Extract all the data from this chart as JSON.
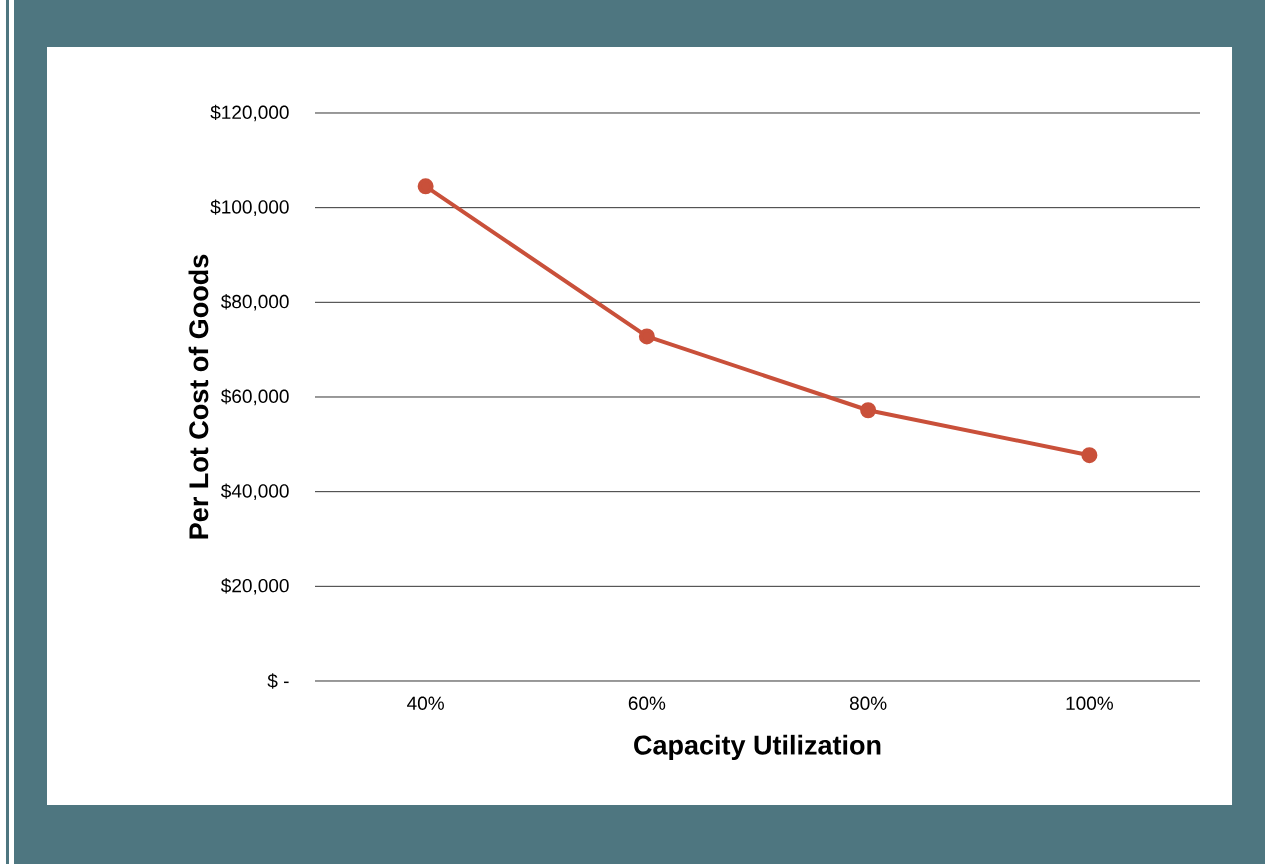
{
  "chart_data": {
    "type": "line",
    "categories": [
      "40%",
      "60%",
      "80%",
      "100%"
    ],
    "values": [
      104500,
      72800,
      57200,
      47700
    ],
    "color": "#c9503a",
    "xlabel": "Capacity Utilization",
    "ylabel": "Per Lot Cost of Goods",
    "ylim": [
      0,
      120000
    ],
    "yticks": [
      {
        "value": 0,
        "label": "$ -"
      },
      {
        "value": 20000,
        "label": "$20,000"
      },
      {
        "value": 40000,
        "label": "$40,000"
      },
      {
        "value": 60000,
        "label": "$60,000"
      },
      {
        "value": 80000,
        "label": "$80,000"
      },
      {
        "value": 100000,
        "label": "$100,000"
      },
      {
        "value": 120000,
        "label": "$120,000"
      }
    ],
    "grid": "y",
    "marker": "circle"
  }
}
